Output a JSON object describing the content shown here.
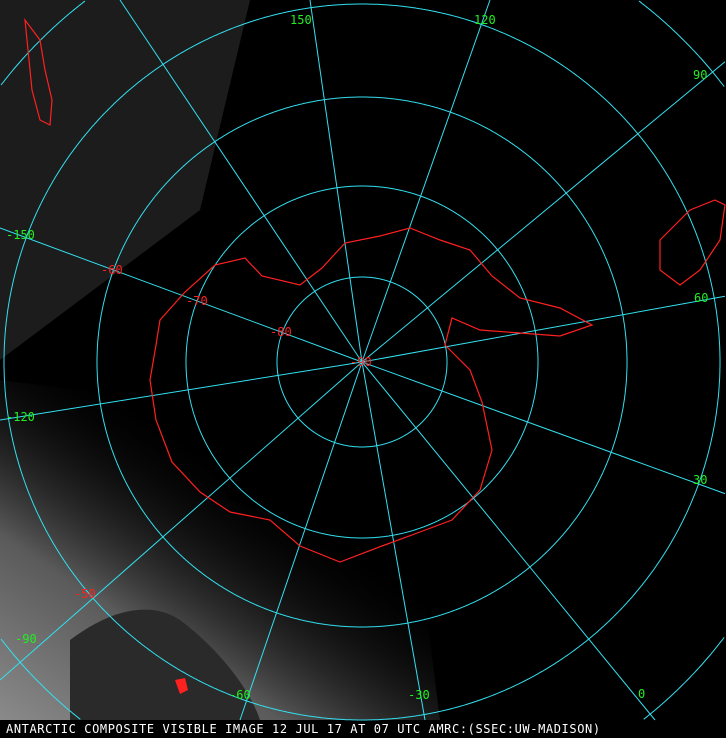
{
  "caption": "ANTARCTIC COMPOSITE VISIBLE IMAGE 12 JUL 17 AT 07 UTC AMRC:(SSEC:UW-MADISON)",
  "colors": {
    "grid": "#33e0f0",
    "coastline": "#ff2020",
    "longitude_label": "#22ee22",
    "latitude_label": "#ff2020",
    "caption": "#ffffff"
  },
  "longitude_labels": [
    "150",
    "120",
    "90",
    "60",
    "30",
    "0",
    "-30",
    "-60",
    "-90",
    "-120",
    "-150"
  ],
  "latitude_labels": [
    "-90",
    "-80",
    "-70",
    "-60",
    "-50"
  ]
}
